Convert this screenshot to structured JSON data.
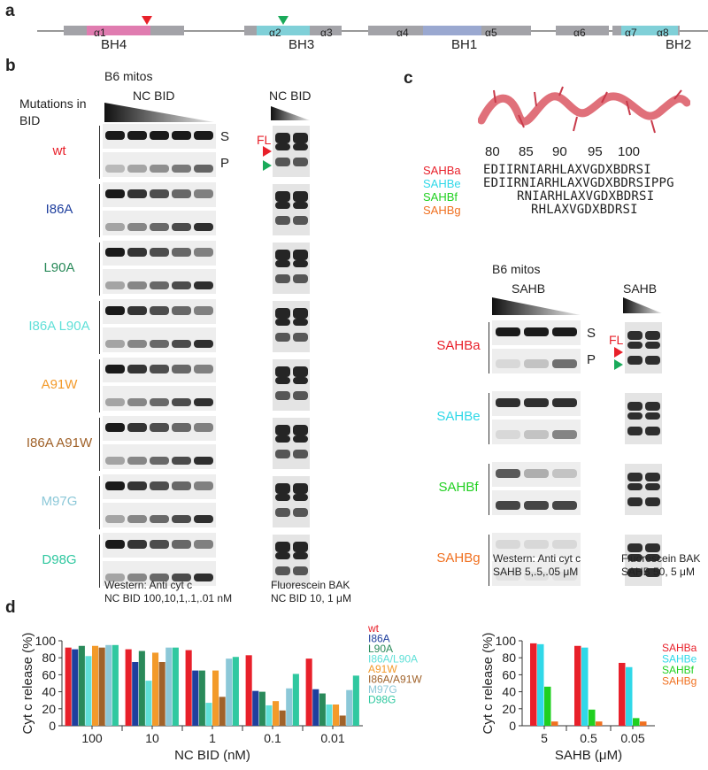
{
  "panel_labels": {
    "a": "a",
    "b": "b",
    "c": "c",
    "d": "d"
  },
  "panel_a": {
    "helices": [
      "α1",
      "α2",
      "α3",
      "α4",
      "α5",
      "α6",
      "α7",
      "α8"
    ],
    "domains": [
      "BH4",
      "BH3",
      "BH1",
      "BH2"
    ]
  },
  "panel_b": {
    "mitos_title": "B6 mitos",
    "mutations_header": "Mutations in BID",
    "western_title": "NC BID",
    "bak_title": "NC BID",
    "S": "S",
    "P": "P",
    "FL": "FL",
    "rows": [
      {
        "name": "wt",
        "color": "#e8202a"
      },
      {
        "name": "I86A",
        "color": "#1f3f9e"
      },
      {
        "name": "L90A",
        "color": "#2a8a5a"
      },
      {
        "name": "I86A L90A",
        "color": "#60e0d8"
      },
      {
        "name": "A91W",
        "color": "#f39a2a"
      },
      {
        "name": "I86A A91W",
        "color": "#a0622a"
      },
      {
        "name": "M97G",
        "color": "#8cc8d8"
      },
      {
        "name": "D98G",
        "color": "#30c8a0"
      }
    ],
    "western_caption": "Western: Anti cyt c",
    "western_conc": "NC BID 100,10,1,.1,.01 nM",
    "bak_caption": "Fluorescein BAK",
    "bak_conc": "NC BID 10, 1 μM"
  },
  "panel_c": {
    "positions": [
      "80",
      "85",
      "90",
      "95",
      "100"
    ],
    "peptides": [
      {
        "name": "SAHBa",
        "color": "#e8202a",
        "seq": "EDIIRNIARHLAXVGDXBDRSI"
      },
      {
        "name": "SAHBe",
        "color": "#30d8e8",
        "seq": "EDIIRNIARHLAXVGDXBDRSIPPG"
      },
      {
        "name": "SAHBf",
        "color": "#20d020",
        "seq": "RNIARHLAXVGDXBDRSI"
      },
      {
        "name": "SAHBg",
        "color": "#f07020",
        "seq": "RHLAXVGDXBDRSI"
      }
    ],
    "mitos_title": "B6 mitos",
    "western_title": "SAHB",
    "bak_title": "SAHB",
    "S": "S",
    "P": "P",
    "FL": "FL",
    "western_caption": "Western: Anti cyt c",
    "western_conc": "SAHB 5,.5,.05 μM",
    "bak_caption": "Fluorescein BAK",
    "bak_conc": "SAHB 50, 5 μM"
  },
  "chart_data": [
    {
      "type": "bar",
      "ylabel": "Cyt c release (%)",
      "xlabel": "NC BID (nM)",
      "categories": [
        "100",
        "10",
        "1",
        "0.1",
        "0.01"
      ],
      "ylim": [
        0,
        100
      ],
      "yticks": [
        "0",
        "20",
        "40",
        "60",
        "80",
        "100"
      ],
      "series": [
        {
          "name": "wt",
          "color": "#e8202a",
          "values": [
            92,
            90,
            89,
            83,
            79
          ]
        },
        {
          "name": "I86A",
          "color": "#1f3f9e",
          "values": [
            90,
            75,
            65,
            41,
            43
          ]
        },
        {
          "name": "L90A",
          "color": "#2a8a5a",
          "values": [
            94,
            88,
            65,
            40,
            38
          ]
        },
        {
          "name": "I86A/L90A",
          "color": "#60e0d8",
          "values": [
            82,
            53,
            27,
            24,
            25
          ]
        },
        {
          "name": "A91W",
          "color": "#f39a2a",
          "values": [
            94,
            86,
            65,
            29,
            25
          ]
        },
        {
          "name": "I86A/A91W",
          "color": "#a0622a",
          "values": [
            92,
            75,
            34,
            18,
            12
          ]
        },
        {
          "name": "M97G",
          "color": "#8cc8d8",
          "values": [
            95,
            92,
            79,
            44,
            42
          ]
        },
        {
          "name": "D98G",
          "color": "#30c8a0",
          "values": [
            95,
            92,
            81,
            61,
            59
          ]
        }
      ]
    },
    {
      "type": "bar",
      "ylabel": "Cyt c release (%)",
      "xlabel": "SAHB (μM)",
      "categories": [
        "5",
        "0.5",
        "0.05"
      ],
      "ylim": [
        0,
        100
      ],
      "yticks": [
        "0",
        "20",
        "40",
        "60",
        "80",
        "100"
      ],
      "series": [
        {
          "name": "SAHBa",
          "color": "#e8202a",
          "values": [
            97,
            94,
            74
          ]
        },
        {
          "name": "SAHBe",
          "color": "#30d8e8",
          "values": [
            96,
            92,
            69
          ]
        },
        {
          "name": "SAHBf",
          "color": "#20d020",
          "values": [
            46,
            19,
            9
          ]
        },
        {
          "name": "SAHBg",
          "color": "#f07020",
          "values": [
            5,
            5,
            5
          ]
        }
      ]
    }
  ]
}
